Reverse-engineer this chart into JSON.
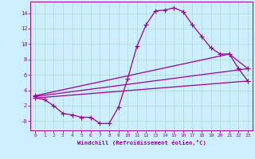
{
  "xlabel": "Windchill (Refroidissement éolien,°C)",
  "bg_color": "#cceeff",
  "line_color": "#990099",
  "grid_color": "#aaddcc",
  "ylim": [
    -1.2,
    15.5
  ],
  "xlim": [
    -0.5,
    23.5
  ],
  "yticks": [
    0,
    2,
    4,
    6,
    8,
    10,
    12,
    14
  ],
  "ytick_labels": [
    "-0",
    "2",
    "4",
    "6",
    "8",
    "10",
    "12",
    "14"
  ],
  "xticks": [
    0,
    1,
    2,
    3,
    4,
    5,
    6,
    7,
    8,
    9,
    10,
    11,
    12,
    13,
    14,
    15,
    16,
    17,
    18,
    19,
    20,
    21,
    22,
    23
  ],
  "line1_x": [
    0,
    1,
    2,
    3,
    4,
    5,
    6,
    7,
    8,
    9,
    10,
    11,
    12,
    13,
    14,
    15,
    16,
    17,
    18,
    19,
    20,
    21,
    22,
    23
  ],
  "line1_y": [
    3.0,
    2.8,
    2.0,
    1.0,
    0.8,
    0.5,
    0.5,
    -0.3,
    -0.3,
    1.8,
    5.5,
    9.7,
    12.5,
    14.3,
    14.4,
    14.7,
    14.2,
    12.5,
    11.0,
    9.5,
    8.7,
    8.7,
    6.8,
    5.2
  ],
  "line2_x": [
    0,
    23
  ],
  "line2_y": [
    3.0,
    5.2
  ],
  "line3_x": [
    0,
    23
  ],
  "line3_y": [
    3.2,
    6.8
  ],
  "line4_x": [
    0,
    21,
    23
  ],
  "line4_y": [
    3.3,
    8.7,
    6.8
  ]
}
